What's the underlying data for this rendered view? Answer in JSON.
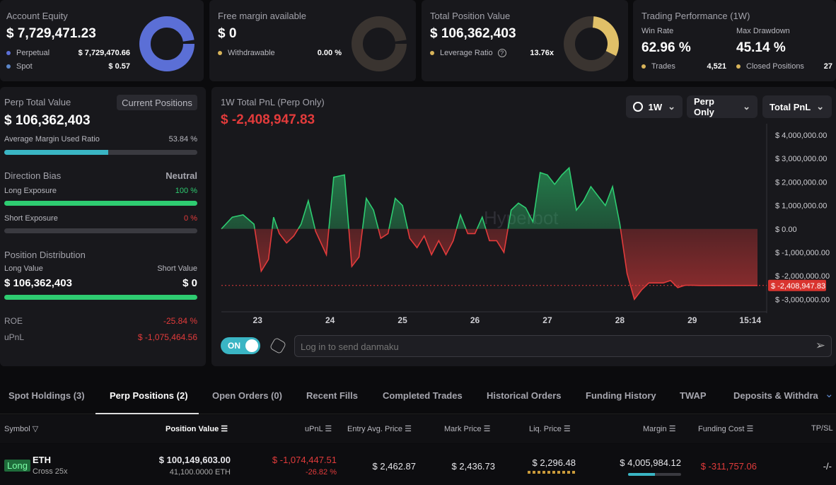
{
  "summary": {
    "equity": {
      "label": "Account Equity",
      "value": "$ 7,729,471.23",
      "perpetual_label": "Perpetual",
      "perpetual_value": "$ 7,729,470.66",
      "spot_label": "Spot",
      "spot_value": "$ 0.57",
      "perpetual_color": "#5b6fd6",
      "spot_color": "#5b86c9"
    },
    "margin": {
      "label": "Free margin available",
      "value": "$ 0",
      "withdrawable_label": "Withdrawable",
      "withdrawable_value": "0.00 %"
    },
    "position": {
      "label": "Total Position Value",
      "value": "$ 106,362,403",
      "leverage_label": "Leverage Ratio",
      "leverage_value": "13.76x"
    },
    "performance": {
      "label": "Trading Performance (1W)",
      "win_rate_label": "Win Rate",
      "win_rate": "62.96 %",
      "drawdown_label": "Max Drawdown",
      "drawdown": "45.14 %",
      "trades_label": "Trades",
      "trades": "4,521",
      "closed_label": "Closed Positions",
      "closed": "27"
    }
  },
  "left_panel": {
    "perp_total_label": "Perp Total Value",
    "current_positions_button": "Current Positions",
    "perp_total_value": "$ 106,362,403",
    "avg_margin_label": "Average Margin Used Ratio",
    "avg_margin_value": "53.84 %",
    "avg_margin_fraction": 0.5384,
    "direction_label": "Direction Bias",
    "direction_value": "Neutral",
    "long_exposure_label": "Long Exposure",
    "long_exposure_value": "100 %",
    "long_exposure_fraction": 1.0,
    "short_exposure_label": "Short Exposure",
    "short_exposure_value": "0 %",
    "short_exposure_fraction": 0.0,
    "distribution_label": "Position Distribution",
    "long_value_label": "Long Value",
    "short_value_label": "Short Value",
    "long_value": "$ 106,362,403",
    "short_value": "$ 0",
    "roe_label": "ROE",
    "roe_value": "-25.84 %",
    "upnl_label": "uPnL",
    "upnl_value": "$ -1,075,464.56"
  },
  "chart_panel": {
    "title": "1W Total PnL (Perp Only)",
    "value": "$ -2,408,947.83",
    "range_button": "1W",
    "scope_button": "Perp Only",
    "metric_button": "Total PnL",
    "watermark": "Hyperbot",
    "toggle_label": "ON",
    "danmaku_placeholder": "Log in to send danmaku"
  },
  "chart_data": {
    "type": "area",
    "ylim": [
      -3500000,
      4300000
    ],
    "y_ticks": [
      4000000,
      3000000,
      2000000,
      1000000,
      0,
      -1000000,
      -2000000,
      -3000000
    ],
    "y_tick_labels": [
      "$ 4,000,000.00",
      "$ 3,000,000.00",
      "$ 2,000,000.00",
      "$ 1,000,000.00",
      "$ 0.00",
      "$ -1,000,000.00",
      "$ -2,000,000.00",
      "$ -3,000,000.00"
    ],
    "x_tick_labels": [
      "23",
      "24",
      "25",
      "26",
      "27",
      "28",
      "29",
      "15:14"
    ],
    "x_tick_positions": [
      0.5,
      1.5,
      2.5,
      3.5,
      4.5,
      5.5,
      6.5,
      7.3
    ],
    "current_value": -2408947.83,
    "current_label": "$ -2,408,947.83",
    "x": [
      0,
      0.15,
      0.3,
      0.45,
      0.55,
      0.65,
      0.72,
      0.8,
      0.9,
      1.0,
      1.1,
      1.2,
      1.3,
      1.45,
      1.55,
      1.7,
      1.8,
      1.9,
      2.0,
      2.1,
      2.2,
      2.3,
      2.4,
      2.5,
      2.6,
      2.7,
      2.8,
      2.9,
      3.0,
      3.1,
      3.2,
      3.3,
      3.4,
      3.5,
      3.6,
      3.7,
      3.8,
      3.9,
      4.0,
      4.1,
      4.2,
      4.3,
      4.4,
      4.5,
      4.6,
      4.7,
      4.8,
      4.9,
      5.0,
      5.1,
      5.2,
      5.3,
      5.4,
      5.5,
      5.6,
      5.7,
      5.8,
      5.9,
      6.0,
      6.1,
      6.2,
      6.3,
      6.4,
      6.5,
      6.6,
      6.7,
      6.8,
      6.9,
      7.0,
      7.1,
      7.2,
      7.3,
      7.4
    ],
    "y": [
      0,
      500000,
      600000,
      200000,
      -1800000,
      -1300000,
      500000,
      -200000,
      -600000,
      -300000,
      200000,
      1200000,
      -100000,
      -1100000,
      2200000,
      2300000,
      -1600000,
      -1200000,
      1300000,
      800000,
      -400000,
      -200000,
      1300000,
      1000000,
      -400000,
      -800000,
      -300000,
      -1100000,
      -500000,
      -1100000,
      -500000,
      600000,
      -200000,
      -200000,
      500000,
      -500000,
      -500000,
      -1000000,
      800000,
      1100000,
      900000,
      300000,
      2400000,
      2300000,
      1900000,
      2300000,
      2600000,
      800000,
      1200000,
      1800000,
      1400000,
      1000000,
      1800000,
      200000,
      -1900000,
      -3000000,
      -2600000,
      -2300000,
      -2300000,
      -2300000,
      -2200000,
      -2500000,
      -2400000,
      -2400000,
      -2409000,
      -2409000,
      -2409000,
      -2409000,
      -2409000,
      -2409000,
      -2409000,
      -2409000,
      -2409000
    ]
  },
  "tabs": [
    "Spot Holdings (3)",
    "Perp Positions (2)",
    "Open Orders (0)",
    "Recent Fills",
    "Completed Trades",
    "Historical Orders",
    "Funding History",
    "TWAP",
    "Deposits & Withdraw"
  ],
  "table": {
    "headers": {
      "symbol": "Symbol",
      "position_value": "Position Value",
      "upnl": "uPnL",
      "entry": "Entry Avg. Price",
      "mark": "Mark Price",
      "liq": "Liq. Price",
      "margin": "Margin",
      "funding": "Funding Cost",
      "tpsl": "TP/SL"
    },
    "rows": [
      {
        "side": "Long",
        "symbol": "ETH",
        "mode": "Cross 25x",
        "position_value": "$ 100,149,603.00",
        "size": "41,100.0000 ETH",
        "upnl": "$ -1,074,447.51",
        "upnl_pct": "-26.82 %",
        "entry": "$ 2,462.87",
        "mark": "$ 2,436.73",
        "liq": "$ 2,296.48",
        "margin": "$ 4,005,984.12",
        "margin_fraction": 0.5,
        "funding": "$ -311,757.06",
        "tpsl": "-/-"
      }
    ]
  }
}
